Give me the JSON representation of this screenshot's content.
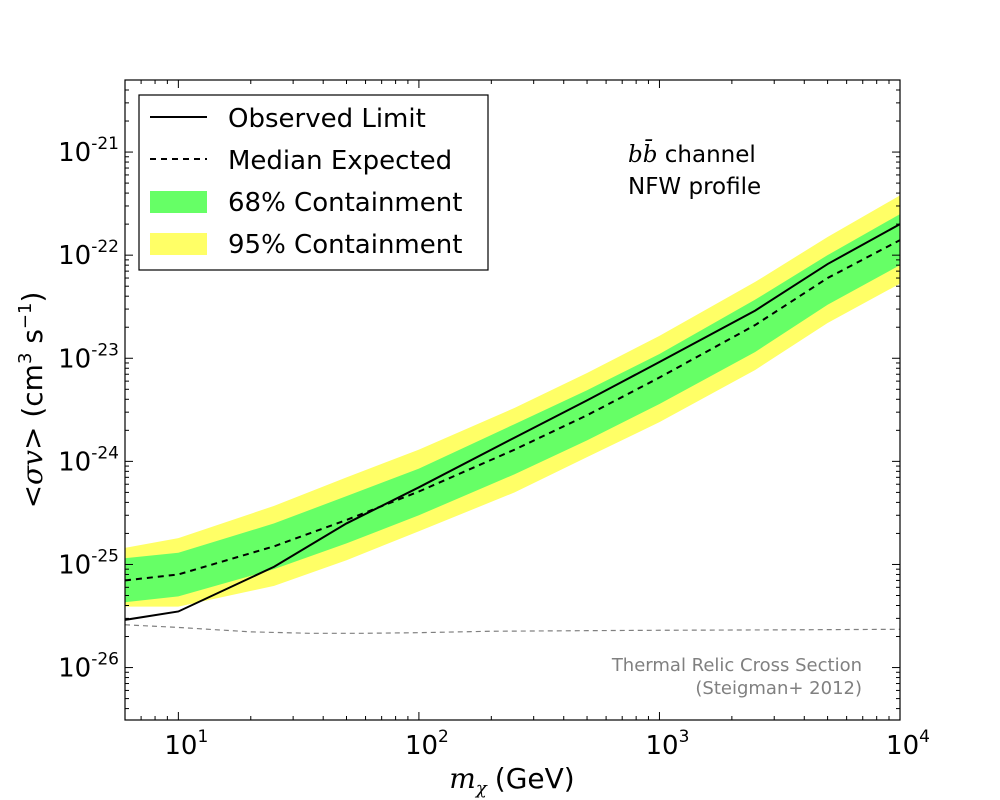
{
  "chart_data": {
    "type": "line",
    "x_scale": "log",
    "y_scale": "log",
    "xlim": [
      6,
      10000
    ],
    "ylim": [
      3.1e-27,
      5e-21
    ],
    "xlabel": {
      "math": "m",
      "sub": "χ",
      "text": "(GeV)"
    },
    "ylabel": {
      "pre": "<",
      "math": "σv",
      "post": "> (cm",
      "sup1": "3",
      "mid": " s",
      "sup2": "−1",
      "end": ")"
    },
    "x_ticks": [
      {
        "value": 10,
        "base": "10",
        "exp": "1"
      },
      {
        "value": 100,
        "base": "10",
        "exp": "2"
      },
      {
        "value": 1000,
        "base": "10",
        "exp": "3"
      },
      {
        "value": 10000,
        "base": "10",
        "exp": "4"
      }
    ],
    "y_ticks": [
      {
        "value": 1e-26,
        "base": "10",
        "exp": "-26"
      },
      {
        "value": 1e-25,
        "base": "10",
        "exp": "-25"
      },
      {
        "value": 1e-24,
        "base": "10",
        "exp": "-24"
      },
      {
        "value": 1e-23,
        "base": "10",
        "exp": "-23"
      },
      {
        "value": 1e-22,
        "base": "10",
        "exp": "-22"
      },
      {
        "value": 1e-21,
        "base": "10",
        "exp": "-21"
      }
    ],
    "annotation": {
      "math": "bb̄",
      "line1_suffix": " channel",
      "line2": "NFW profile"
    },
    "thermal_label": {
      "line1": "Thermal Relic Cross Section",
      "line2": "(Steigman+ 2012)"
    },
    "legend": {
      "position": "top-left",
      "entries": [
        {
          "label": "Observed Limit",
          "style": "solid"
        },
        {
          "label": "Median Expected",
          "style": "dashed"
        },
        {
          "label": "68% Containment",
          "style": "patch",
          "color": "#66ff66"
        },
        {
          "label": "95% Containment",
          "style": "patch",
          "color": "#ffff66"
        }
      ]
    },
    "colors": {
      "band68": "#66ff66",
      "band95": "#ffff66",
      "observed": "#000000",
      "median": "#000000",
      "thermal": "#808080"
    },
    "series": [
      {
        "name": "Observed Limit",
        "x": [
          6,
          10,
          25,
          50,
          100,
          250,
          500,
          1000,
          2500,
          5000,
          10000
        ],
        "y": [
          2.9e-26,
          3.5e-26,
          9.5e-26,
          2.5e-25,
          5.6e-25,
          1.7e-24,
          3.9e-24,
          9.2e-24,
          2.9e-23,
          8.2e-23,
          2e-22
        ]
      },
      {
        "name": "Median Expected",
        "x": [
          6,
          10,
          25,
          50,
          100,
          250,
          500,
          1000,
          2500,
          5000,
          10000
        ],
        "y": [
          7e-26,
          8e-26,
          1.5e-25,
          2.7e-25,
          5.1e-25,
          1.3e-24,
          2.8e-24,
          6.5e-24,
          2.1e-23,
          6e-23,
          1.4e-22
        ]
      },
      {
        "name": "68% Containment",
        "x": [
          6,
          10,
          25,
          50,
          100,
          250,
          500,
          1000,
          2500,
          5000,
          10000
        ],
        "upper": [
          1.15e-25,
          1.3e-25,
          2.5e-25,
          4.6e-25,
          8.5e-25,
          2.3e-24,
          4.9e-24,
          1.1e-23,
          3.7e-23,
          1e-22,
          2.5e-22
        ],
        "lower": [
          4.3e-26,
          4.9e-26,
          9e-26,
          1.6e-25,
          3e-25,
          7.5e-25,
          1.6e-24,
          3.6e-24,
          1.15e-23,
          3.3e-23,
          8e-23
        ]
      },
      {
        "name": "95% Containment",
        "x": [
          6,
          10,
          25,
          50,
          100,
          250,
          500,
          1000,
          2500,
          5000,
          10000
        ],
        "upper": [
          1.45e-25,
          1.8e-25,
          3.7e-25,
          7e-25,
          1.3e-24,
          3.3e-24,
          7.2e-24,
          1.65e-23,
          5.5e-23,
          1.5e-22,
          3.8e-22
        ],
        "lower": [
          3.9e-26,
          3.9e-26,
          6.2e-26,
          1.1e-25,
          2.1e-25,
          5e-25,
          1.1e-24,
          2.4e-24,
          7.7e-24,
          2.2e-23,
          5.3e-23
        ]
      },
      {
        "name": "Thermal Relic Cross Section",
        "x": [
          6,
          10,
          20,
          35,
          60,
          100,
          200,
          500,
          1000,
          3000,
          10000
        ],
        "y": [
          2.6e-26,
          2.45e-26,
          2.22e-26,
          2.15e-26,
          2.15e-26,
          2.18e-26,
          2.25e-26,
          2.28e-26,
          2.3e-26,
          2.32e-26,
          2.35e-26
        ]
      }
    ]
  }
}
